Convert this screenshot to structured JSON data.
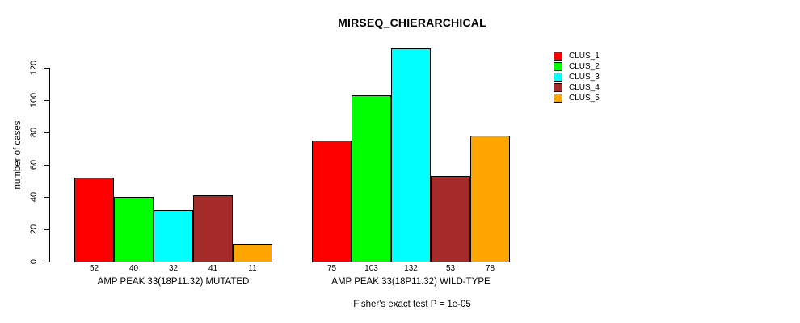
{
  "chart_data": {
    "type": "bar",
    "title": "MIRSEQ_CHIERARCHICAL",
    "ylabel": "number of cases",
    "xlabel": "",
    "ylim": [
      0,
      132
    ],
    "yticks": [
      0,
      20,
      40,
      60,
      80,
      100,
      120
    ],
    "grid": false,
    "legend_position": "top-right",
    "background_color": "#FFFFFF",
    "bar_border_color": "#000000",
    "bar_value_labels_shown": true,
    "categories": [
      "AMP PEAK 33(18P11.32) MUTATED",
      "AMP PEAK 33(18P11.32) WILD-TYPE"
    ],
    "series": [
      {
        "name": "CLUS_1",
        "color": "#FF0000",
        "values": [
          52,
          75
        ]
      },
      {
        "name": "CLUS_2",
        "color": "#00FF00",
        "values": [
          40,
          103
        ]
      },
      {
        "name": "CLUS_3",
        "color": "#00FFFF",
        "values": [
          32,
          132
        ]
      },
      {
        "name": "CLUS_4",
        "color": "#A52A2A",
        "values": [
          41,
          53
        ]
      },
      {
        "name": "CLUS_5",
        "color": "#FFA500",
        "values": [
          11,
          78
        ]
      }
    ],
    "annotation": "Fisher's exact test P = 1e-05"
  }
}
